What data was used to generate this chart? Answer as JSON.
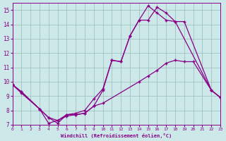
{
  "bg_color": "#cce8e8",
  "line_color": "#880088",
  "grid_color": "#99bbbb",
  "xlim": [
    0,
    23
  ],
  "ylim": [
    7,
    15.5
  ],
  "yticks": [
    7,
    8,
    9,
    10,
    11,
    12,
    13,
    14,
    15
  ],
  "xticks": [
    0,
    1,
    2,
    3,
    4,
    5,
    6,
    7,
    8,
    9,
    10,
    11,
    12,
    13,
    14,
    15,
    16,
    17,
    18,
    19,
    20,
    21,
    22,
    23
  ],
  "xlabel": "Windchill (Refroidissement éolien,°C)",
  "line1_x": [
    0,
    1,
    3,
    4,
    5,
    6,
    7,
    8,
    9,
    10,
    11,
    12,
    13,
    14,
    15,
    16,
    17,
    18,
    22,
    23
  ],
  "line1_y": [
    9.8,
    9.3,
    8.1,
    7.1,
    7.3,
    7.7,
    7.8,
    8.0,
    8.8,
    9.5,
    11.5,
    11.4,
    13.2,
    14.3,
    15.3,
    14.8,
    14.3,
    14.2,
    9.4,
    8.9
  ],
  "line2_x": [
    0,
    1,
    3,
    4,
    5,
    6,
    7,
    8,
    9,
    10,
    11,
    12,
    13,
    14,
    15,
    16,
    17,
    18,
    19,
    22,
    23
  ],
  "line2_y": [
    9.8,
    9.3,
    8.1,
    7.5,
    7.1,
    7.7,
    7.7,
    7.8,
    8.3,
    9.4,
    11.5,
    11.4,
    13.2,
    14.3,
    14.3,
    15.2,
    14.8,
    14.2,
    14.2,
    9.4,
    8.9
  ],
  "line3_x": [
    0,
    1,
    3,
    4,
    5,
    6,
    7,
    8,
    9,
    10,
    14,
    15,
    16,
    17,
    18,
    19,
    20,
    22,
    23
  ],
  "line3_y": [
    9.8,
    9.2,
    8.1,
    7.5,
    7.3,
    7.6,
    7.7,
    7.8,
    8.3,
    8.5,
    10.0,
    10.4,
    10.8,
    11.3,
    11.5,
    11.4,
    11.4,
    9.4,
    8.9
  ]
}
